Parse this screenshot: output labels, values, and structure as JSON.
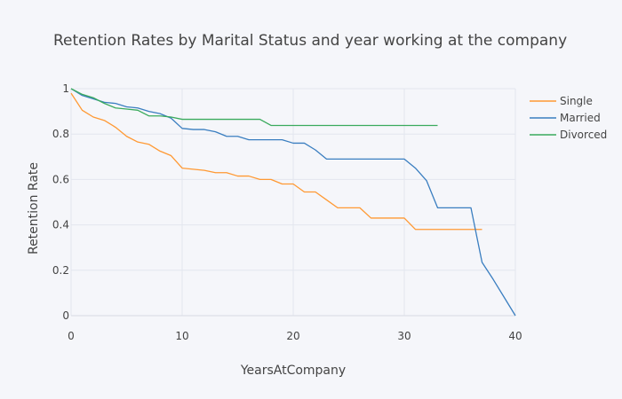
{
  "chart_data": {
    "type": "line",
    "title": "Retention Rates by Marital Status and year working at the company",
    "xlabel": "YearsAtCompany",
    "ylabel": "Retention Rate",
    "xlim": [
      0,
      40
    ],
    "ylim": [
      0,
      1
    ],
    "x_ticks": [
      0,
      10,
      20,
      30,
      40
    ],
    "y_ticks": [
      0,
      0.2,
      0.4,
      0.6,
      0.8,
      1
    ],
    "y_tick_labels": [
      "0",
      "0.2",
      "0.4",
      "0.6",
      "0.8",
      "1"
    ],
    "grid": true,
    "legend_position": "top-right",
    "series": [
      {
        "name": "Single",
        "color": "#ff9933",
        "x": [
          0,
          1,
          2,
          3,
          4,
          5,
          6,
          7,
          8,
          9,
          10,
          11,
          12,
          13,
          14,
          15,
          16,
          17,
          18,
          19,
          20,
          21,
          22,
          23,
          24,
          25,
          26,
          27,
          28,
          29,
          30,
          31,
          32,
          33,
          34,
          35,
          36,
          37
        ],
        "y": [
          0.98,
          0.905,
          0.875,
          0.86,
          0.83,
          0.79,
          0.765,
          0.755,
          0.725,
          0.705,
          0.65,
          0.645,
          0.64,
          0.63,
          0.63,
          0.615,
          0.615,
          0.6,
          0.6,
          0.58,
          0.58,
          0.545,
          0.545,
          0.51,
          0.475,
          0.475,
          0.475,
          0.43,
          0.43,
          0.43,
          0.43,
          0.38,
          0.38,
          0.38,
          0.38,
          0.38,
          0.38,
          0.38
        ]
      },
      {
        "name": "Married",
        "color": "#3a7ec0",
        "x": [
          0,
          1,
          2,
          3,
          4,
          5,
          6,
          7,
          8,
          9,
          10,
          11,
          12,
          13,
          14,
          15,
          16,
          17,
          18,
          19,
          20,
          21,
          22,
          23,
          24,
          25,
          26,
          27,
          28,
          29,
          30,
          31,
          32,
          33,
          34,
          35,
          36,
          37,
          38,
          39,
          40
        ],
        "y": [
          1.0,
          0.97,
          0.955,
          0.94,
          0.935,
          0.92,
          0.915,
          0.9,
          0.89,
          0.87,
          0.825,
          0.82,
          0.82,
          0.81,
          0.79,
          0.79,
          0.775,
          0.775,
          0.775,
          0.775,
          0.76,
          0.76,
          0.73,
          0.69,
          0.69,
          0.69,
          0.69,
          0.69,
          0.69,
          0.69,
          0.69,
          0.65,
          0.595,
          0.475,
          0.475,
          0.475,
          0.475,
          0.235,
          0.16,
          0.08,
          0.0
        ]
      },
      {
        "name": "Divorced",
        "color": "#3aaa5c",
        "x": [
          0,
          1,
          2,
          3,
          4,
          5,
          6,
          7,
          8,
          9,
          10,
          11,
          12,
          13,
          14,
          15,
          16,
          17,
          18,
          19,
          20,
          21,
          22,
          23,
          24,
          25,
          26,
          27,
          28,
          29,
          30,
          31,
          32,
          33
        ],
        "y": [
          1.0,
          0.975,
          0.96,
          0.935,
          0.915,
          0.91,
          0.905,
          0.88,
          0.88,
          0.875,
          0.865,
          0.865,
          0.865,
          0.865,
          0.865,
          0.865,
          0.865,
          0.865,
          0.838,
          0.838,
          0.838,
          0.838,
          0.838,
          0.838,
          0.838,
          0.838,
          0.838,
          0.838,
          0.838,
          0.838,
          0.838,
          0.838,
          0.838,
          0.838
        ]
      }
    ]
  }
}
